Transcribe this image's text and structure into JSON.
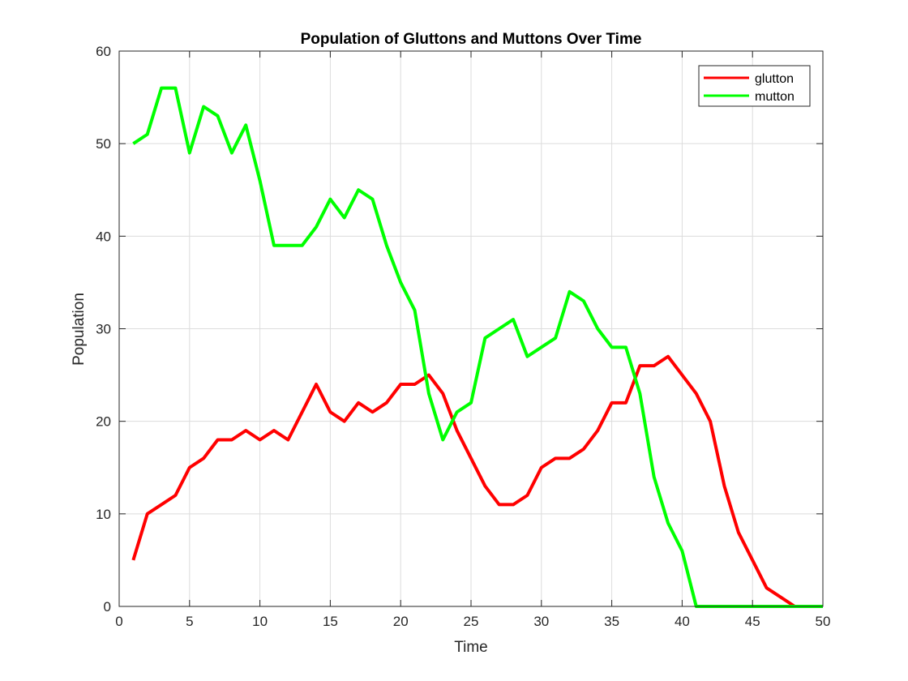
{
  "chart_data": {
    "type": "line",
    "title": "Population of Gluttons and Muttons Over Time",
    "xlabel": "Time",
    "ylabel": "Population",
    "xlim": [
      0,
      50
    ],
    "ylim": [
      0,
      60
    ],
    "xticks": [
      0,
      5,
      10,
      15,
      20,
      25,
      30,
      35,
      40,
      45,
      50
    ],
    "yticks": [
      0,
      10,
      20,
      30,
      40,
      50,
      60
    ],
    "grid": true,
    "legend_position": "top-right",
    "x": [
      1,
      2,
      3,
      4,
      5,
      6,
      7,
      8,
      9,
      10,
      11,
      12,
      13,
      14,
      15,
      16,
      17,
      18,
      19,
      20,
      21,
      22,
      23,
      24,
      25,
      26,
      27,
      28,
      29,
      30,
      31,
      32,
      33,
      34,
      35,
      36,
      37,
      38,
      39,
      40,
      41,
      42,
      43,
      44,
      45,
      46,
      47,
      48,
      49,
      50
    ],
    "series": [
      {
        "name": "glutton",
        "color": "#ff0000",
        "values": [
          5,
          10,
          11,
          12,
          15,
          16,
          18,
          18,
          19,
          18,
          19,
          18,
          21,
          24,
          21,
          20,
          22,
          21,
          22,
          24,
          24,
          25,
          23,
          19,
          16,
          13,
          11,
          11,
          12,
          15,
          16,
          16,
          17,
          19,
          22,
          22,
          26,
          26,
          27,
          25,
          23,
          20,
          13,
          8,
          5,
          2,
          1,
          0,
          0,
          0
        ]
      },
      {
        "name": "mutton",
        "color": "#00ff00",
        "values": [
          50,
          51,
          56,
          56,
          49,
          54,
          53,
          49,
          52,
          46,
          39,
          39,
          39,
          41,
          44,
          42,
          45,
          44,
          39,
          35,
          32,
          23,
          18,
          21,
          22,
          29,
          30,
          31,
          27,
          28,
          29,
          34,
          33,
          30,
          28,
          28,
          23,
          14,
          9,
          6,
          0,
          0,
          0,
          0,
          0,
          0,
          0,
          0,
          0,
          0
        ]
      }
    ]
  }
}
